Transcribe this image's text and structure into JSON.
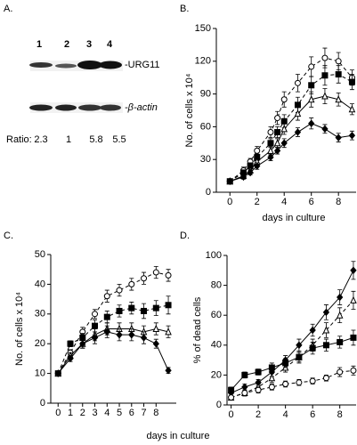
{
  "panel_a": {
    "label": "A.",
    "lanes": [
      "1",
      "2",
      "3",
      "4"
    ],
    "bands": [
      "-URG11",
      "-β-actin"
    ],
    "ratio_label": "Ratio:",
    "ratios": [
      2.3,
      1,
      5.8,
      5.5
    ]
  },
  "chart_data": [
    {
      "type": "line",
      "panel_label": "B.",
      "ylabel": "No. of cells x 10⁴",
      "xlabel": "days in culture",
      "x": [
        0,
        1,
        1.5,
        2,
        3,
        3.5,
        4,
        5,
        6,
        7,
        8,
        9
      ],
      "xlim": [
        -1,
        9.3
      ],
      "xticks": [
        0,
        2,
        4,
        6,
        8
      ],
      "ylim": [
        0,
        150
      ],
      "yticks": [
        0,
        30,
        60,
        90,
        120,
        150
      ],
      "series": [
        {
          "color": "#000000",
          "marker": "circle",
          "filled": false,
          "dashed": true,
          "values": [
            10,
            20,
            28,
            38,
            55,
            68,
            85,
            100,
            115,
            123,
            120,
            105
          ],
          "errors": [
            2,
            3,
            3,
            4,
            5,
            6,
            7,
            8,
            9,
            9,
            8,
            7
          ]
        },
        {
          "color": "#000000",
          "marker": "square",
          "filled": true,
          "dashed": true,
          "values": [
            10,
            18,
            24,
            32,
            45,
            55,
            65,
            80,
            98,
            107,
            108,
            101
          ],
          "errors": [
            2,
            2,
            3,
            3,
            4,
            5,
            6,
            7,
            8,
            9,
            8,
            7
          ]
        },
        {
          "color": "#000000",
          "marker": "triangle",
          "filled": false,
          "dashed": false,
          "values": [
            10,
            15,
            20,
            28,
            38,
            45,
            58,
            72,
            85,
            88,
            85,
            76
          ],
          "errors": [
            2,
            2,
            3,
            3,
            4,
            4,
            5,
            6,
            7,
            7,
            6,
            5
          ]
        },
        {
          "color": "#000000",
          "marker": "diamond",
          "filled": true,
          "dashed": false,
          "values": [
            10,
            14,
            18,
            24,
            32,
            38,
            45,
            55,
            63,
            58,
            50,
            52
          ],
          "errors": [
            2,
            2,
            2,
            3,
            3,
            3,
            4,
            4,
            5,
            4,
            4,
            4
          ]
        }
      ]
    },
    {
      "type": "line",
      "panel_label": "C.",
      "ylabel": "No. of cells x 10⁴",
      "xlabel": "days in culture",
      "x": [
        0,
        1,
        2,
        3,
        4,
        5,
        6,
        7,
        8,
        9
      ],
      "xlim": [
        -0.6,
        9.65
      ],
      "xticks": [
        0,
        1,
        2,
        3,
        4,
        5,
        6,
        7,
        8
      ],
      "ylim": [
        0,
        50
      ],
      "yticks": [
        0,
        10,
        20,
        30,
        40,
        50
      ],
      "series": [
        {
          "color": "#000000",
          "marker": "circle",
          "filled": false,
          "dashed": true,
          "values": [
            10,
            17,
            24,
            30,
            36,
            38,
            40,
            42,
            44,
            43
          ],
          "errors": [
            0.5,
            1,
            1.5,
            1.5,
            2,
            2,
            2,
            2,
            2,
            2
          ]
        },
        {
          "color": "#000000",
          "marker": "square",
          "filled": true,
          "dashed": true,
          "values": [
            10,
            20,
            22,
            26,
            29,
            31,
            32,
            31,
            32,
            33
          ],
          "errors": [
            0.5,
            1,
            1.5,
            2,
            2,
            2,
            2,
            2.5,
            2.5,
            3
          ]
        },
        {
          "color": "#000000",
          "marker": "triangle",
          "filled": false,
          "dashed": false,
          "values": [
            10,
            16,
            20,
            23,
            25,
            25,
            25,
            24,
            25,
            24
          ],
          "errors": [
            0.5,
            1,
            1.5,
            2,
            2,
            2,
            2,
            2,
            2,
            2
          ]
        },
        {
          "color": "#000000",
          "marker": "diamond",
          "filled": true,
          "dashed": false,
          "values": [
            10,
            15,
            20,
            22,
            24,
            23,
            23,
            22,
            20,
            11
          ],
          "errors": [
            0.5,
            1,
            1.5,
            2,
            2,
            2,
            2,
            2,
            1.5,
            1
          ]
        }
      ]
    },
    {
      "type": "line",
      "panel_label": "D.",
      "ylabel": "% of dead cells",
      "x": [
        0,
        1,
        2,
        3,
        4,
        5,
        6,
        7,
        8,
        9
      ],
      "xlim": [
        -0.3,
        9.2
      ],
      "xticks": [
        0,
        2,
        4,
        6,
        8
      ],
      "ylim": [
        0,
        100
      ],
      "yticks": [
        0,
        20,
        40,
        60,
        80,
        100
      ],
      "series": [
        {
          "color": "#000000",
          "marker": "diamond",
          "filled": true,
          "dashed": false,
          "values": [
            8,
            12,
            15,
            22,
            30,
            40,
            50,
            62,
            72,
            90
          ],
          "errors": [
            2,
            2,
            2,
            3,
            3,
            4,
            4,
            5,
            5,
            6
          ]
        },
        {
          "color": "#000000",
          "marker": "triangle",
          "filled": false,
          "dashed": true,
          "values": [
            5,
            8,
            12,
            18,
            25,
            32,
            40,
            50,
            60,
            70
          ],
          "errors": [
            1,
            2,
            2,
            3,
            3,
            4,
            4,
            5,
            5,
            6
          ]
        },
        {
          "color": "#000000",
          "marker": "square",
          "filled": true,
          "dashed": false,
          "values": [
            10,
            20,
            22,
            25,
            28,
            32,
            38,
            40,
            42,
            45
          ],
          "errors": [
            2,
            2,
            2,
            3,
            3,
            3,
            4,
            4,
            4,
            5
          ]
        },
        {
          "color": "#000000",
          "marker": "circle",
          "filled": false,
          "dashed": true,
          "values": [
            5,
            8,
            10,
            12,
            14,
            15,
            16,
            18,
            22,
            23
          ],
          "errors": [
            1,
            1,
            2,
            2,
            2,
            2,
            2,
            2,
            3,
            3
          ]
        }
      ]
    }
  ]
}
